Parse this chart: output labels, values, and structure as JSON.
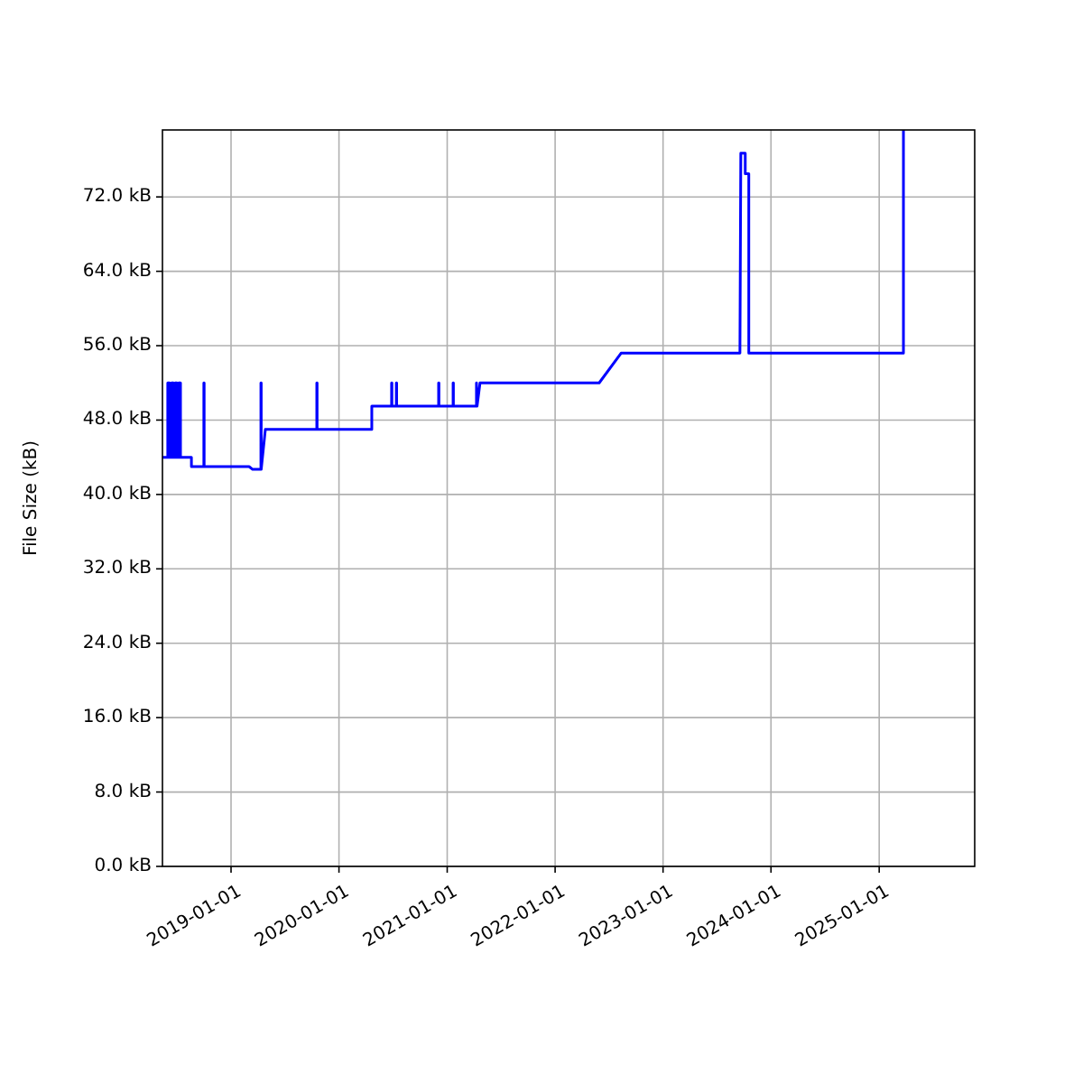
{
  "chart_data": {
    "type": "line",
    "ylabel": "File Size (kB)",
    "x": [
      "2018-05-14",
      "2018-06-01",
      "2018-06-01",
      "2018-06-07",
      "2018-06-07",
      "2018-06-14",
      "2018-06-14",
      "2018-06-20",
      "2018-06-20",
      "2018-06-26",
      "2018-06-26",
      "2018-07-02",
      "2018-07-02",
      "2018-07-08",
      "2018-07-08",
      "2018-07-14",
      "2018-07-14",
      "2018-08-20",
      "2018-08-20",
      "2018-10-01",
      "2018-10-01",
      "2018-10-02",
      "2018-10-02",
      "2019-03-03",
      "2019-03-15",
      "2019-04-12",
      "2019-04-12",
      "2019-04-13",
      "2019-04-13",
      "2019-04-27",
      "2019-10-18",
      "2019-10-18",
      "2019-10-19",
      "2019-10-19",
      "2020-04-21",
      "2020-04-21",
      "2020-06-27",
      "2020-06-27",
      "2020-06-28",
      "2020-06-28",
      "2020-07-13",
      "2020-07-13",
      "2020-07-14",
      "2020-07-14",
      "2020-12-03",
      "2020-12-03",
      "2020-12-04",
      "2020-12-04",
      "2021-01-21",
      "2021-01-21",
      "2021-01-22",
      "2021-01-22",
      "2021-04-10",
      "2021-04-10",
      "2021-04-12",
      "2021-04-22",
      "2022-05-30",
      "2022-08-12",
      "2023-09-18",
      "2023-09-21",
      "2023-10-06",
      "2023-10-06",
      "2023-10-18",
      "2023-10-18",
      "2023-10-24",
      "2023-10-24",
      "2025-03-24",
      "2025-03-24"
    ],
    "series": [
      {
        "color": "#0000ff",
        "values": [
          44,
          44,
          52,
          52,
          44,
          44,
          52,
          52,
          44,
          44,
          52,
          52,
          44,
          44,
          52,
          52,
          44,
          44,
          43,
          43,
          52,
          52,
          43,
          43,
          42.7,
          42.7,
          52,
          52,
          42.7,
          47,
          47,
          52,
          52,
          47,
          47,
          49.5,
          49.5,
          52,
          52,
          49.5,
          49.5,
          52,
          52,
          49.5,
          49.5,
          52,
          52,
          49.5,
          49.5,
          52,
          52,
          49.5,
          49.5,
          52,
          49.5,
          52,
          52,
          55.2,
          55.2,
          76.7,
          76.7,
          74.5,
          74.5,
          55.2,
          55.2,
          55.2,
          55.2,
          79.2
        ]
      }
    ],
    "xlim": [
      "2018-05-14",
      "2025-11-20"
    ],
    "xticks": [
      "2019-01-01",
      "2020-01-01",
      "2021-01-01",
      "2022-01-01",
      "2023-01-01",
      "2024-01-01",
      "2025-01-01"
    ],
    "ylim": [
      0,
      79.2
    ],
    "yticks": [
      {
        "value": 0,
        "label": "0.0 kB"
      },
      {
        "value": 8,
        "label": "8.0 kB"
      },
      {
        "value": 16,
        "label": "16.0 kB"
      },
      {
        "value": 24,
        "label": "24.0 kB"
      },
      {
        "value": 32,
        "label": "32.0 kB"
      },
      {
        "value": 40,
        "label": "40.0 kB"
      },
      {
        "value": 48,
        "label": "48.0 kB"
      },
      {
        "value": 56,
        "label": "56.0 kB"
      },
      {
        "value": 64,
        "label": "64.0 kB"
      },
      {
        "value": 72,
        "label": "72.0 kB"
      }
    ],
    "grid": true
  }
}
